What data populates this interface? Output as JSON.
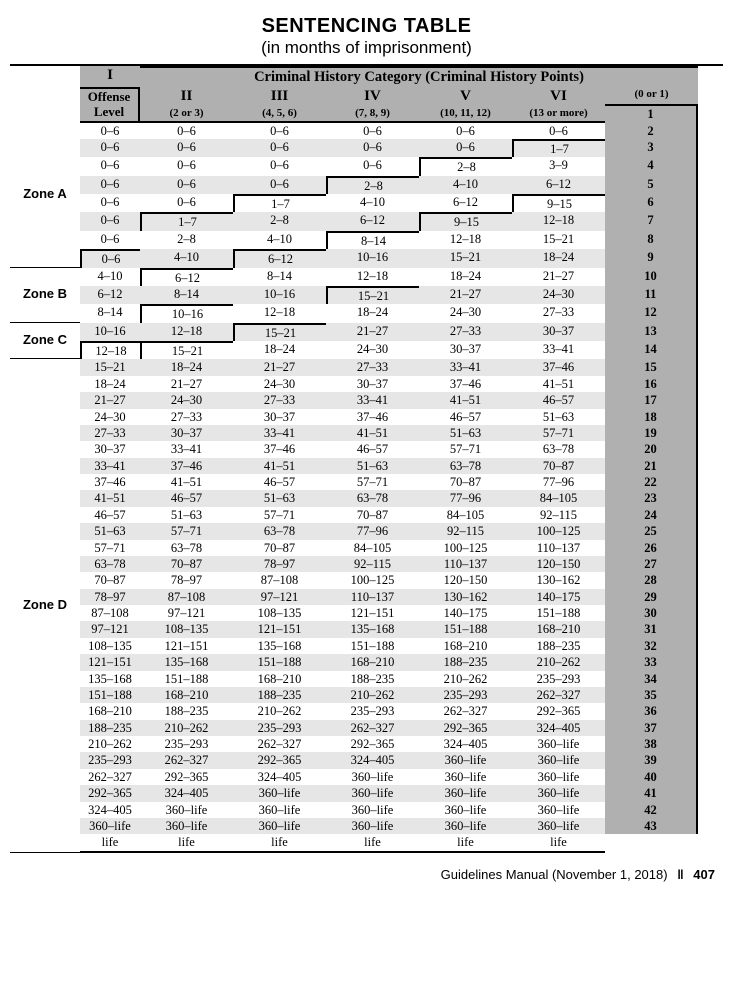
{
  "title": "SENTENCING TABLE",
  "subtitle": "(in months of imprisonment)",
  "header_top": "Criminal History Category  (Criminal History Points)",
  "offense_label_1": "Offense",
  "offense_label_2": "Level",
  "columns": [
    {
      "main": "I",
      "sub": "(0 or 1)"
    },
    {
      "main": "II",
      "sub": "(2 or 3)"
    },
    {
      "main": "III",
      "sub": "(4, 5, 6)"
    },
    {
      "main": "IV",
      "sub": "(7, 8, 9)"
    },
    {
      "main": "V",
      "sub": "(10, 11, 12)"
    },
    {
      "main": "VI",
      "sub": "(13 or more)"
    }
  ],
  "zones": [
    {
      "label": "Zone A",
      "start": 1,
      "end": 8
    },
    {
      "label": "Zone B",
      "start": 9,
      "end": 11
    },
    {
      "label": "Zone C",
      "start": 12,
      "end": 13
    },
    {
      "label": "Zone D",
      "start": 14,
      "end": 43
    }
  ],
  "rows": [
    {
      "level": "1",
      "v": [
        "0–6",
        "0–6",
        "0–6",
        "0–6",
        "0–6",
        "0–6"
      ]
    },
    {
      "level": "2",
      "v": [
        "0–6",
        "0–6",
        "0–6",
        "0–6",
        "0–6",
        "1–7"
      ]
    },
    {
      "level": "3",
      "v": [
        "0–6",
        "0–6",
        "0–6",
        "0–6",
        "2–8",
        "3–9"
      ]
    },
    {
      "level": "4",
      "v": [
        "0–6",
        "0–6",
        "0–6",
        "2–8",
        "4–10",
        "6–12"
      ]
    },
    {
      "level": "5",
      "v": [
        "0–6",
        "0–6",
        "1–7",
        "4–10",
        "6–12",
        "9–15"
      ]
    },
    {
      "level": "6",
      "v": [
        "0–6",
        "1–7",
        "2–8",
        "6–12",
        "9–15",
        "12–18"
      ]
    },
    {
      "level": "7",
      "v": [
        "0–6",
        "2–8",
        "4–10",
        "8–14",
        "12–18",
        "15–21"
      ]
    },
    {
      "level": "8",
      "v": [
        "0–6",
        "4–10",
        "6–12",
        "10–16",
        "15–21",
        "18–24"
      ]
    },
    {
      "level": "9",
      "v": [
        "4–10",
        "6–12",
        "8–14",
        "12–18",
        "18–24",
        "21–27"
      ]
    },
    {
      "level": "10",
      "v": [
        "6–12",
        "8–14",
        "10–16",
        "15–21",
        "21–27",
        "24–30"
      ]
    },
    {
      "level": "11",
      "v": [
        "8–14",
        "10–16",
        "12–18",
        "18–24",
        "24–30",
        "27–33"
      ]
    },
    {
      "level": "12",
      "v": [
        "10–16",
        "12–18",
        "15–21",
        "21–27",
        "27–33",
        "30–37"
      ]
    },
    {
      "level": "13",
      "v": [
        "12–18",
        "15–21",
        "18–24",
        "24–30",
        "30–37",
        "33–41"
      ]
    },
    {
      "level": "14",
      "v": [
        "15–21",
        "18–24",
        "21–27",
        "27–33",
        "33–41",
        "37–46"
      ]
    },
    {
      "level": "15",
      "v": [
        "18–24",
        "21–27",
        "24–30",
        "30–37",
        "37–46",
        "41–51"
      ]
    },
    {
      "level": "16",
      "v": [
        "21–27",
        "24–30",
        "27–33",
        "33–41",
        "41–51",
        "46–57"
      ]
    },
    {
      "level": "17",
      "v": [
        "24–30",
        "27–33",
        "30–37",
        "37–46",
        "46–57",
        "51–63"
      ]
    },
    {
      "level": "18",
      "v": [
        "27–33",
        "30–37",
        "33–41",
        "41–51",
        "51–63",
        "57–71"
      ]
    },
    {
      "level": "19",
      "v": [
        "30–37",
        "33–41",
        "37–46",
        "46–57",
        "57–71",
        "63–78"
      ]
    },
    {
      "level": "20",
      "v": [
        "33–41",
        "37–46",
        "41–51",
        "51–63",
        "63–78",
        "70–87"
      ]
    },
    {
      "level": "21",
      "v": [
        "37–46",
        "41–51",
        "46–57",
        "57–71",
        "70–87",
        "77–96"
      ]
    },
    {
      "level": "22",
      "v": [
        "41–51",
        "46–57",
        "51–63",
        "63–78",
        "77–96",
        "84–105"
      ]
    },
    {
      "level": "23",
      "v": [
        "46–57",
        "51–63",
        "57–71",
        "70–87",
        "84–105",
        "92–115"
      ]
    },
    {
      "level": "24",
      "v": [
        "51–63",
        "57–71",
        "63–78",
        "77–96",
        "92–115",
        "100–125"
      ]
    },
    {
      "level": "25",
      "v": [
        "57–71",
        "63–78",
        "70–87",
        "84–105",
        "100–125",
        "110–137"
      ]
    },
    {
      "level": "26",
      "v": [
        "63–78",
        "70–87",
        "78–97",
        "92–115",
        "110–137",
        "120–150"
      ]
    },
    {
      "level": "27",
      "v": [
        "70–87",
        "78–97",
        "87–108",
        "100–125",
        "120–150",
        "130–162"
      ]
    },
    {
      "level": "28",
      "v": [
        "78–97",
        "87–108",
        "97–121",
        "110–137",
        "130–162",
        "140–175"
      ]
    },
    {
      "level": "29",
      "v": [
        "87–108",
        "97–121",
        "108–135",
        "121–151",
        "140–175",
        "151–188"
      ]
    },
    {
      "level": "30",
      "v": [
        "97–121",
        "108–135",
        "121–151",
        "135–168",
        "151–188",
        "168–210"
      ]
    },
    {
      "level": "31",
      "v": [
        "108–135",
        "121–151",
        "135–168",
        "151–188",
        "168–210",
        "188–235"
      ]
    },
    {
      "level": "32",
      "v": [
        "121–151",
        "135–168",
        "151–188",
        "168–210",
        "188–235",
        "210–262"
      ]
    },
    {
      "level": "33",
      "v": [
        "135–168",
        "151–188",
        "168–210",
        "188–235",
        "210–262",
        "235–293"
      ]
    },
    {
      "level": "34",
      "v": [
        "151–188",
        "168–210",
        "188–235",
        "210–262",
        "235–293",
        "262–327"
      ]
    },
    {
      "level": "35",
      "v": [
        "168–210",
        "188–235",
        "210–262",
        "235–293",
        "262–327",
        "292–365"
      ]
    },
    {
      "level": "36",
      "v": [
        "188–235",
        "210–262",
        "235–293",
        "262–327",
        "292–365",
        "324–405"
      ]
    },
    {
      "level": "37",
      "v": [
        "210–262",
        "235–293",
        "262–327",
        "292–365",
        "324–405",
        "360–life"
      ]
    },
    {
      "level": "38",
      "v": [
        "235–293",
        "262–327",
        "292–365",
        "324–405",
        "360–life",
        "360–life"
      ]
    },
    {
      "level": "39",
      "v": [
        "262–327",
        "292–365",
        "324–405",
        "360–life",
        "360–life",
        "360–life"
      ]
    },
    {
      "level": "40",
      "v": [
        "292–365",
        "324–405",
        "360–life",
        "360–life",
        "360–life",
        "360–life"
      ]
    },
    {
      "level": "41",
      "v": [
        "324–405",
        "360–life",
        "360–life",
        "360–life",
        "360–life",
        "360–life"
      ]
    },
    {
      "level": "42",
      "v": [
        "360–life",
        "360–life",
        "360–life",
        "360–life",
        "360–life",
        "360–life"
      ]
    },
    {
      "level": "43",
      "v": [
        "life",
        "life",
        "life",
        "life",
        "life",
        "life"
      ]
    }
  ],
  "steps": {
    "1": [
      false,
      false,
      false,
      false,
      false,
      false
    ],
    "2": [
      false,
      false,
      false,
      false,
      false,
      true
    ],
    "3": [
      false,
      false,
      false,
      false,
      true,
      false
    ],
    "4": [
      false,
      false,
      false,
      true,
      false,
      false
    ],
    "5": [
      false,
      false,
      true,
      false,
      false,
      true
    ],
    "6": [
      false,
      true,
      false,
      false,
      true,
      false
    ],
    "7": [
      false,
      false,
      false,
      true,
      false,
      false
    ],
    "8": [
      true,
      false,
      true,
      false,
      false,
      false
    ],
    "9": [
      false,
      true,
      false,
      false,
      false,
      false
    ],
    "10": [
      false,
      false,
      false,
      true,
      false,
      false
    ],
    "11": [
      false,
      true,
      false,
      false,
      false,
      false
    ],
    "12": [
      false,
      false,
      true,
      false,
      false,
      false
    ],
    "13": [
      true,
      true,
      false,
      false,
      false,
      false
    ]
  },
  "footer_text": "Guidelines Manual (November 1, 2018)",
  "footer_page": "407",
  "colors": {
    "header_bg": "#b0b0b0",
    "row_shade": "#e6e6e6",
    "border": "#000000",
    "text": "#000000"
  }
}
